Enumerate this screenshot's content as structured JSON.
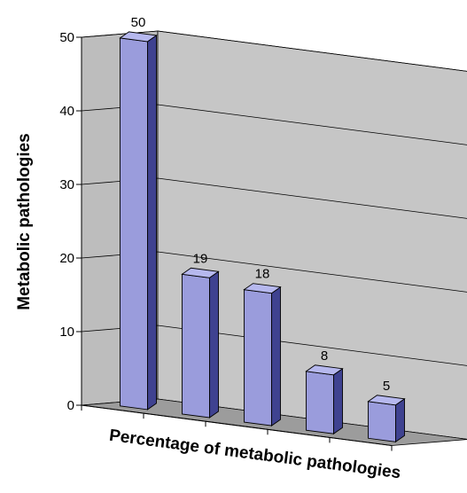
{
  "chart_data": {
    "type": "bar",
    "title": "",
    "xlabel": "Percentage of metabolic pathologies",
    "ylabel": "Metabolic pathologies",
    "categories": [
      "",
      "",
      "",
      "",
      ""
    ],
    "values": [
      50,
      19,
      18,
      8,
      5
    ],
    "data_labels": [
      "50",
      "19",
      "18",
      "8",
      "5"
    ],
    "ylim": [
      0,
      50
    ],
    "yticks": [
      "0",
      "10",
      "20",
      "30",
      "40",
      "50"
    ],
    "grid": true,
    "three_d": true,
    "colors": {
      "bar_front": "#9a9cdc",
      "bar_top": "#b6b8ee",
      "bar_side": "#3f4290",
      "wall": "#c6c6c6",
      "floor": "#9c9c9c"
    }
  }
}
